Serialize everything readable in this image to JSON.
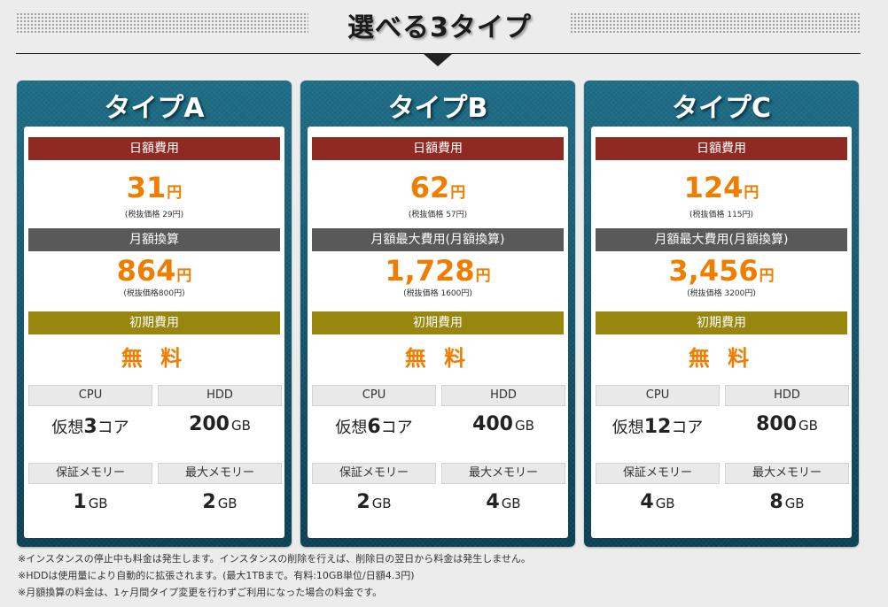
{
  "header": {
    "title": "選べる3タイプ"
  },
  "plans": [
    {
      "name": "タイプA",
      "daily_label": "日額費用",
      "daily_price": "31",
      "yen": "円",
      "daily_tax": "(税抜価格 29円)",
      "monthly_label": "月額換算",
      "monthly_price": "864",
      "monthly_tax": "(税抜価格800円)",
      "initial_label": "初期費用",
      "initial_value": "無 料",
      "cpu_label": "CPU",
      "cpu_pre": "仮想",
      "cpu_num": "3",
      "cpu_post": "コア",
      "hdd_label": "HDD",
      "hdd_value": "200",
      "hdd_unit": "GB",
      "mem_label": "保証メモリー",
      "mem_value": "1",
      "mem_unit": "GB",
      "maxmem_label": "最大メモリー",
      "maxmem_value": "2",
      "maxmem_unit": "GB"
    },
    {
      "name": "タイプB",
      "daily_label": "日額費用",
      "daily_price": "62",
      "yen": "円",
      "daily_tax": "(税抜価格 57円)",
      "monthly_label": "月額最大費用(月額換算)",
      "monthly_price": "1,728",
      "monthly_tax": "(税抜価格 1600円)",
      "initial_label": "初期費用",
      "initial_value": "無 料",
      "cpu_label": "CPU",
      "cpu_pre": "仮想",
      "cpu_num": "6",
      "cpu_post": "コア",
      "hdd_label": "HDD",
      "hdd_value": "400",
      "hdd_unit": "GB",
      "mem_label": "保証メモリー",
      "mem_value": "2",
      "mem_unit": "GB",
      "maxmem_label": "最大メモリー",
      "maxmem_value": "4",
      "maxmem_unit": "GB"
    },
    {
      "name": "タイプC",
      "daily_label": "日額費用",
      "daily_price": "124",
      "yen": "円",
      "daily_tax": "(税抜価格 115円)",
      "monthly_label": "月額最大費用(月額換算)",
      "monthly_price": "3,456",
      "monthly_tax": "(税抜価格 3200円)",
      "initial_label": "初期費用",
      "initial_value": "無 料",
      "cpu_label": "CPU",
      "cpu_pre": "仮想",
      "cpu_num": "12",
      "cpu_post": "コア",
      "hdd_label": "HDD",
      "hdd_value": "800",
      "hdd_unit": "GB",
      "mem_label": "保証メモリー",
      "mem_value": "4",
      "mem_unit": "GB",
      "maxmem_label": "最大メモリー",
      "maxmem_value": "8",
      "maxmem_unit": "GB"
    }
  ],
  "notes": [
    "※インスタンスの停止中も料金は発生します。インスタンスの削除を行えば、削除日の翌日から料金は発生しません。",
    "※HDDは使用量により自動的に拡張されます。(最大1TBまで。有料:10GB単位/日額4.3円)",
    "※月額換算の料金は、1ヶ月間タイプ変更を行わずご利用になった場合の料金です。"
  ],
  "colors": {
    "card_bg": "#0d4458",
    "daily_bar": "#8e2a22",
    "monthly_bar": "#595959",
    "initial_bar": "#98860f",
    "price": "#f07d00"
  }
}
